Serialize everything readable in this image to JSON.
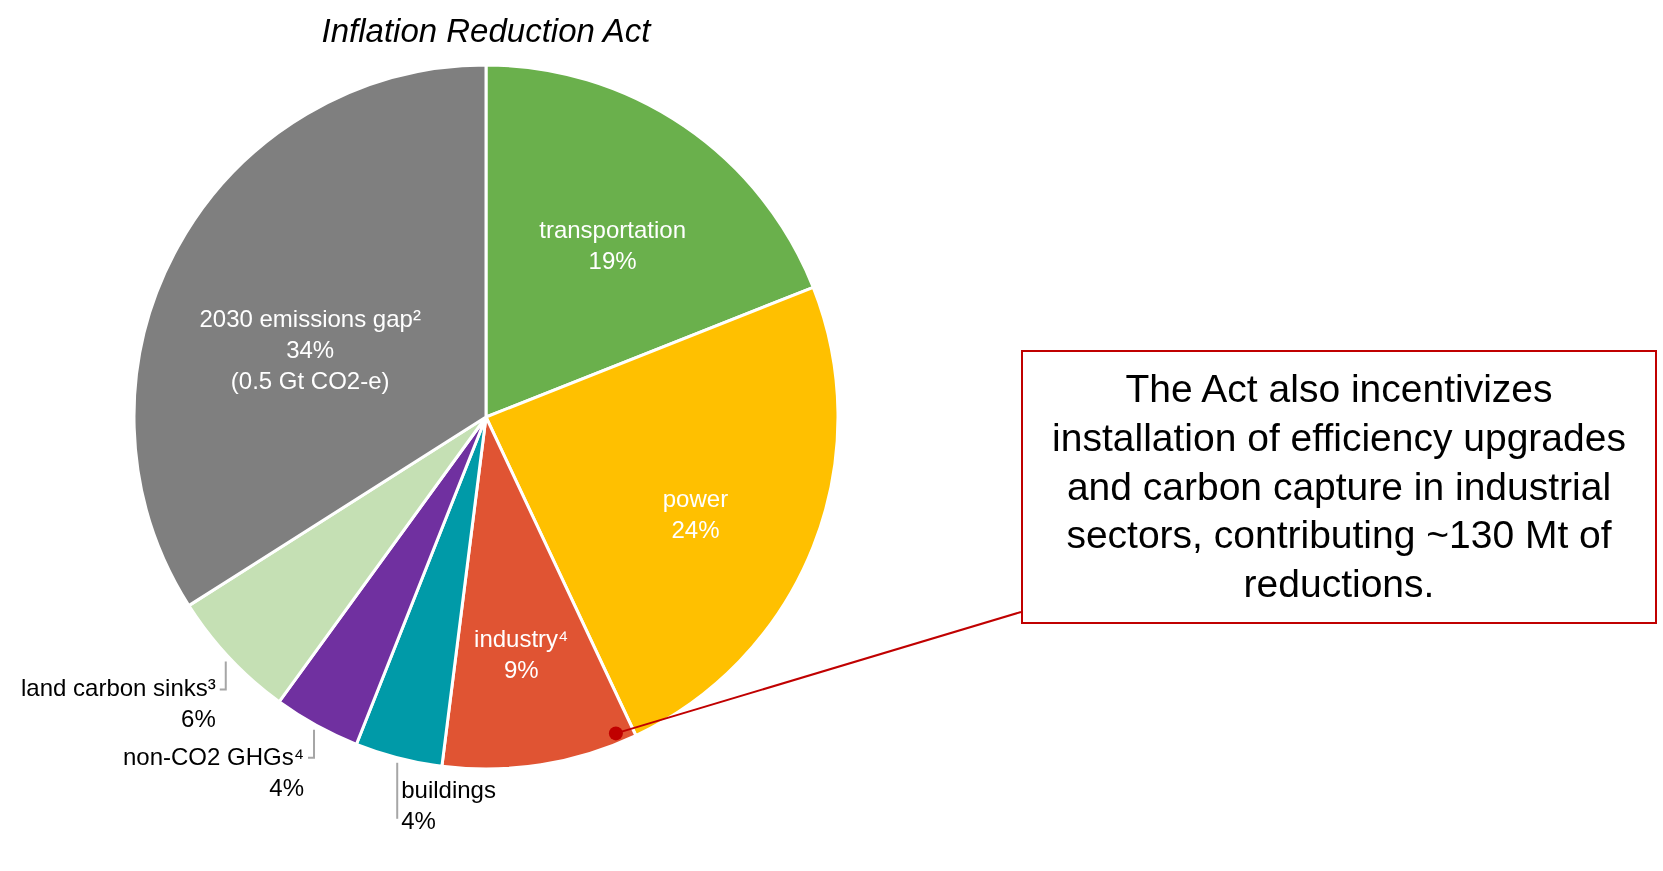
{
  "chart_data": {
    "type": "pie",
    "title": "Inflation Reduction Act",
    "categories": [
      "transportation",
      "power",
      "industry⁴",
      "buildings",
      "non-CO2 GHGs⁴",
      "land carbon sinks³",
      "2030 emissions gap²"
    ],
    "values": [
      19,
      24,
      9,
      4,
      4,
      6,
      34
    ],
    "value_labels": [
      "19%",
      "24%",
      "9%",
      "4%",
      "4%",
      "6%",
      "34%"
    ],
    "colors": [
      "#6ab04c",
      "#ffc000",
      "#e05433",
      "#009aa8",
      "#7030a0",
      "#c5e0b4",
      "#7f7f7f"
    ],
    "annotations": [
      {
        "text": "(0.5 Gt CO2-e)",
        "x": "2030 emissions gap²"
      },
      {
        "text": "The Act also incentivizes installation of efficiency upgrades and carbon capture in industrial sectors, contributing ~130 Mt of reductions.",
        "x": "industry⁴"
      }
    ]
  }
}
